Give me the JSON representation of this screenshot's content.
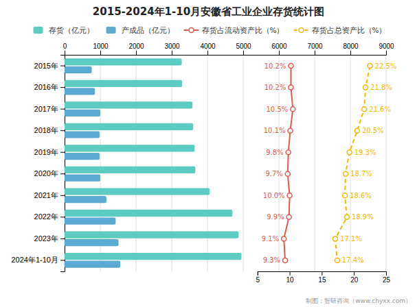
{
  "chart_data": {
    "type": "bar",
    "orientation": "horizontal",
    "title": "2015-2024年1-10月安徽省工业企业存货统计图",
    "categories": [
      "2015年",
      "2016年",
      "2017年",
      "2018年",
      "2019年",
      "2020年",
      "2021年",
      "2022年",
      "2023年",
      "2024年1-10月"
    ],
    "series": [
      {
        "name": "存货（亿元）",
        "color": "#5ecbc3",
        "values": [
          3280,
          3290,
          3580,
          3600,
          3640,
          3660,
          4060,
          4700,
          4870,
          4950
        ]
      },
      {
        "name": "产成品（亿元）",
        "color": "#5baad4",
        "values": [
          760,
          850,
          1000,
          980,
          980,
          1000,
          1170,
          1430,
          1510,
          1560
        ]
      },
      {
        "name": "存货占流动资产比（%）",
        "type": "line",
        "axis": "y2",
        "color": "#e05a4e",
        "marker": "circle",
        "line_style": "solid",
        "data_labels": true,
        "values": [
          10.2,
          10.2,
          10.5,
          10.1,
          9.8,
          9.7,
          10.0,
          9.9,
          9.1,
          9.3
        ],
        "value_labels": [
          "10.2%",
          "10.2%",
          "10.5%",
          "10.1%",
          "9.8%",
          "9.7%",
          "10.0%",
          "9.9%",
          "9.1%",
          "9.3%"
        ]
      },
      {
        "name": "存货占总资产比（%）",
        "type": "line",
        "axis": "y2",
        "color": "#f5b800",
        "marker": "circle",
        "line_style": "dashed",
        "data_labels": true,
        "values": [
          22.5,
          21.8,
          21.6,
          20.5,
          19.3,
          18.7,
          18.6,
          18.9,
          17.1,
          17.4
        ],
        "value_labels": [
          "22.5%",
          "21.8%",
          "21.6%",
          "20.5%",
          "19.3%",
          "18.7%",
          "18.6%",
          "18.9%",
          "17.1%",
          "17.4%"
        ]
      }
    ],
    "ylim": [
      0,
      9000
    ],
    "yticks": [
      0,
      1000,
      2000,
      3000,
      4000,
      5000,
      6000,
      7000,
      8000,
      9000
    ],
    "y2lim": [
      5,
      25
    ],
    "y2ticks": [
      5,
      10,
      15,
      20,
      25
    ],
    "grid": true,
    "legend": "top",
    "annotations": [
      "制图：智研咨询（www.chyxx.com）"
    ]
  }
}
